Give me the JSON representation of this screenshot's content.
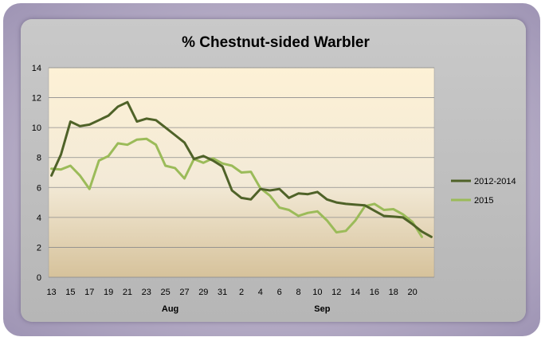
{
  "chart_data": {
    "type": "line",
    "title": "% Chestnut-sided Warbler",
    "xlabel": "",
    "ylabel": "",
    "ylim": [
      0,
      14
    ],
    "yticks": [
      0,
      2,
      4,
      6,
      8,
      10,
      12,
      14
    ],
    "x_tick_labels": [
      "13",
      "15",
      "17",
      "19",
      "21",
      "23",
      "25",
      "27",
      "29",
      "31",
      "2",
      "4",
      "6",
      "8",
      "10",
      "12",
      "14",
      "16",
      "18",
      "20"
    ],
    "month_labels": [
      {
        "label": "Aug",
        "index": 12
      },
      {
        "label": "Sep",
        "index": 28
      }
    ],
    "grid": true,
    "legend_position": "right",
    "series": [
      {
        "name": "2012-2014",
        "color": "#4f6228",
        "values": [
          6.8,
          8.2,
          10.4,
          10.1,
          10.2,
          10.5,
          10.8,
          11.4,
          11.7,
          10.4,
          10.6,
          10.5,
          10.0,
          9.5,
          9.0,
          7.9,
          8.1,
          7.8,
          7.4,
          5.8,
          5.3,
          5.2,
          5.9,
          5.8,
          5.9,
          5.3,
          5.6,
          5.55,
          5.7,
          5.2,
          5.0,
          4.9,
          4.85,
          4.8,
          4.45,
          4.1,
          4.05,
          4.0,
          3.55,
          3.05,
          2.7
        ]
      },
      {
        "name": "2015",
        "color": "#9bbb59",
        "values": [
          7.25,
          7.2,
          7.45,
          6.8,
          5.9,
          7.8,
          8.1,
          8.95,
          8.85,
          9.2,
          9.25,
          8.85,
          7.45,
          7.3,
          6.6,
          7.9,
          7.65,
          7.95,
          7.6,
          7.45,
          7.0,
          7.05,
          5.95,
          5.45,
          4.65,
          4.5,
          4.1,
          4.3,
          4.4,
          3.8,
          3.0,
          3.1,
          3.8,
          4.75,
          4.9,
          4.5,
          4.55,
          4.2,
          3.7,
          2.7
        ]
      }
    ]
  }
}
